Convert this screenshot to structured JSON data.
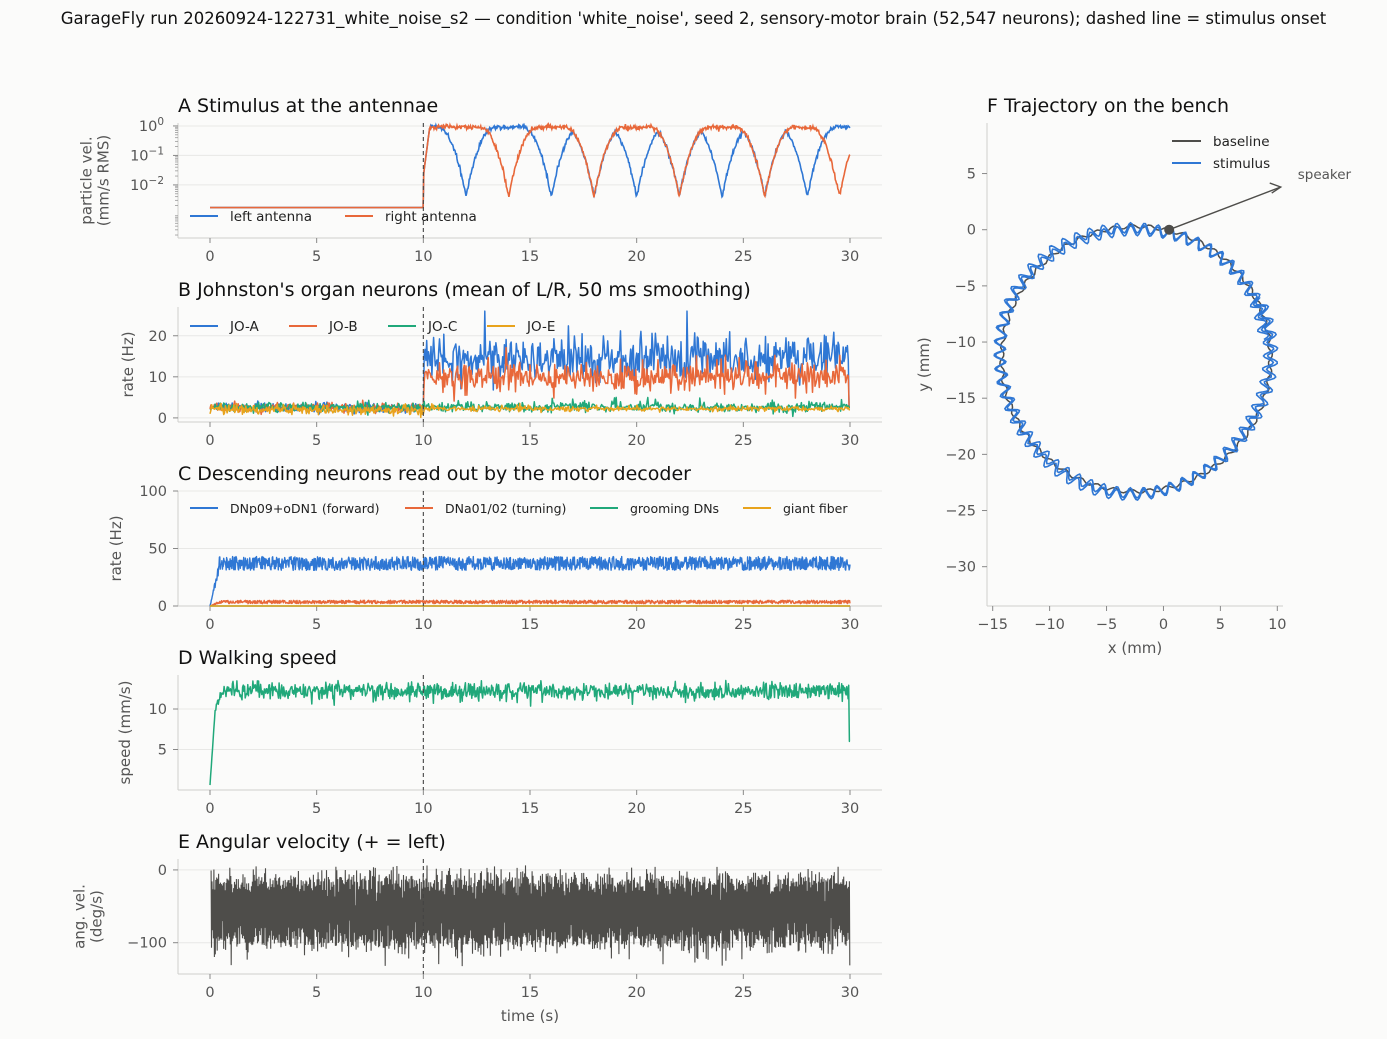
{
  "suptitle": "GarageFly run 20260924-122731_white_noise_s2 — condition 'white_noise', seed 2, sensory-motor brain (52,547 neurons); dashed line = stimulus onset",
  "colors": {
    "blue": "#2f77d4",
    "orange": "#e8683a",
    "green": "#20a87a",
    "yellow": "#e8a31c",
    "dark": "#4e4d4a",
    "grid": "#e8e8e6",
    "axis": "#cfcfcc",
    "text": "#555555"
  },
  "stimulus_onset_s": 10,
  "chart_data": [
    {
      "id": "A",
      "type": "line",
      "title": "A  Stimulus at the antennae",
      "ylabel": "particle vel.\n(mm/s RMS)",
      "xlabel": "",
      "xlim": [
        -1.5,
        31.5
      ],
      "ylim_log10": [
        -3.8,
        0.1
      ],
      "yscale": "log",
      "xticks": [
        0,
        5,
        10,
        15,
        20,
        25,
        30
      ],
      "yticks": [
        {
          "exp": 0,
          "value": 1
        },
        {
          "exp": -1,
          "value": 0.1
        },
        {
          "exp": -2,
          "value": 0.01
        }
      ],
      "grid": true,
      "legend": "lower-left",
      "series": [
        {
          "name": "left antenna",
          "color": "blue",
          "baseline": 0.0017,
          "troughs_s": [
            12,
            16,
            18,
            20,
            22,
            24,
            26,
            28
          ],
          "trough_min": 0.004
        },
        {
          "name": "right antenna",
          "color": "orange",
          "baseline": 0.0017,
          "troughs_s": [
            14,
            18,
            22,
            26,
            29.5
          ],
          "trough_min": 0.004
        }
      ],
      "envelope_peak": 1.0
    },
    {
      "id": "B",
      "type": "line",
      "title": "B  Johnston's organ neurons (mean of L/R, 50 ms smoothing)",
      "ylabel": "rate (Hz)",
      "xlabel": "",
      "xlim": [
        -1.5,
        31.5
      ],
      "ylim": [
        -1,
        27
      ],
      "xticks": [
        0,
        5,
        10,
        15,
        20,
        25,
        30
      ],
      "yticks": [
        0,
        10,
        20
      ],
      "grid": true,
      "legend": "top-left",
      "series": [
        {
          "name": "JO-A",
          "color": "blue",
          "pre_mean": 2.5,
          "post_mean": 14.5,
          "post_spread": 6,
          "max": 26
        },
        {
          "name": "JO-B",
          "color": "orange",
          "pre_mean": 2.5,
          "post_mean": 10.0,
          "post_spread": 4,
          "max": 19
        },
        {
          "name": "JO-C",
          "color": "green",
          "pre_mean": 2.6,
          "post_mean": 2.6,
          "post_spread": 1.4,
          "max": 5
        },
        {
          "name": "JO-E",
          "color": "yellow",
          "pre_mean": 2.0,
          "post_mean": 2.2,
          "post_spread": 0.7,
          "max": 3.5
        }
      ]
    },
    {
      "id": "C",
      "type": "line",
      "title": "C  Descending neurons read out by the motor decoder",
      "ylabel": "rate (Hz)",
      "xlabel": "",
      "xlim": [
        -1.5,
        31.5
      ],
      "ylim": [
        0,
        100
      ],
      "xticks": [
        0,
        5,
        10,
        15,
        20,
        25,
        30
      ],
      "yticks": [
        0,
        50,
        100
      ],
      "grid": true,
      "legend": "top",
      "series": [
        {
          "name": "DNp09+oDN1 (forward)",
          "color": "blue",
          "mean": 37,
          "spread": 6
        },
        {
          "name": "DNa01/02 (turning)",
          "color": "orange",
          "mean": 3.5,
          "spread": 1.5
        },
        {
          "name": "grooming DNs",
          "color": "green",
          "mean": 0,
          "spread": 0
        },
        {
          "name": "giant fiber",
          "color": "yellow",
          "mean": 0,
          "spread": 0
        }
      ]
    },
    {
      "id": "D",
      "type": "line",
      "title": "D  Walking speed",
      "ylabel": "speed (mm/s)",
      "xlabel": "",
      "xlim": [
        -1.5,
        31.5
      ],
      "ylim": [
        0,
        14.2
      ],
      "xticks": [
        0,
        5,
        10,
        15,
        20,
        25,
        30
      ],
      "yticks": [
        5,
        10
      ],
      "grid": true,
      "series": [
        {
          "name": "speed",
          "color": "green",
          "start": 0.6,
          "plateau": 12.2,
          "end": 6.0
        }
      ]
    },
    {
      "id": "E",
      "type": "line",
      "title": "E  Angular velocity (+ = left)",
      "ylabel": "ang. vel.\n(deg/s)",
      "xlabel": "time (s)",
      "xlim": [
        -1.5,
        31.5
      ],
      "ylim": [
        -143,
        15
      ],
      "xticks": [
        0,
        5,
        10,
        15,
        20,
        25,
        30
      ],
      "yticks": [
        0,
        -100
      ],
      "grid": true,
      "series": [
        {
          "name": "angular velocity",
          "color": "dark",
          "low": -102,
          "high": -12,
          "min": -137,
          "max": 10
        }
      ]
    },
    {
      "id": "F",
      "type": "line",
      "title": "F  Trajectory on the bench",
      "xlabel": "x (mm)",
      "ylabel": "y (mm)",
      "xlim": [
        -15.5,
        10.5
      ],
      "ylim": [
        -33.5,
        9.5
      ],
      "xticks": [
        -15,
        -10,
        -5,
        0,
        5,
        10
      ],
      "yticks": [
        5,
        0,
        -5,
        -10,
        -15,
        -20,
        -25,
        -30
      ],
      "legend": "top-right",
      "circle_center": [
        -2.4,
        -11.5
      ],
      "circle_radius": 11.8,
      "start_point": [
        0.5,
        0
      ],
      "speaker_arrow_to": [
        10.3,
        3.8
      ],
      "annotation": "speaker",
      "series": [
        {
          "name": "baseline",
          "color": "dark"
        },
        {
          "name": "stimulus",
          "color": "blue"
        }
      ]
    }
  ]
}
